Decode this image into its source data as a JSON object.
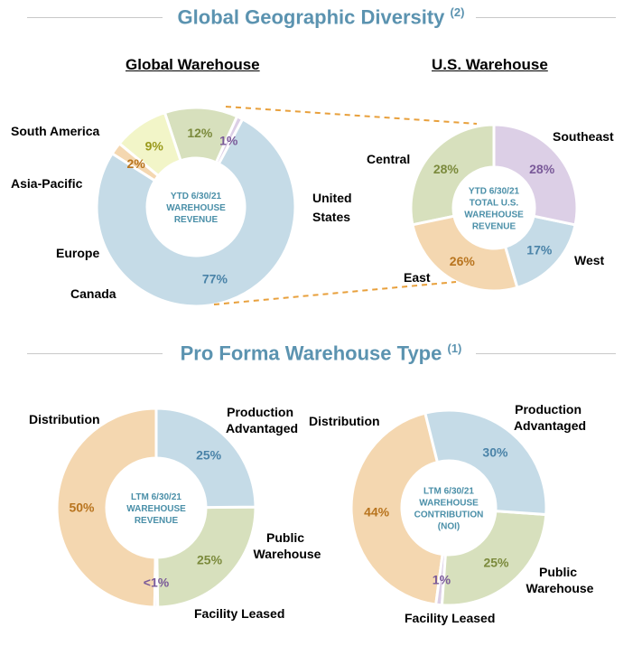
{
  "sections": {
    "geo_title": "Global Geographic Diversity",
    "geo_note": "(2)",
    "type_title": "Pro Forma Warehouse Type",
    "type_note": "(1)"
  },
  "colors": {
    "blue": "#c5dbe7",
    "green": "#d7e0bd",
    "yellow": "#f2f5c8",
    "orange": "#f4d7b0",
    "purple": "#dccfe6",
    "connector": "#e8a03c",
    "title": "#5b93b0"
  },
  "chart_data": [
    {
      "id": "global",
      "type": "pie",
      "title": "Global Warehouse",
      "center_lines": [
        "YTD 6/30/21",
        "WAREHOUSE",
        "REVENUE"
      ],
      "slices": [
        {
          "name": "United States",
          "value": 77,
          "label": "77%",
          "color": "#c5dbe7",
          "pct_color": "#4a83a8"
        },
        {
          "name": "Canada",
          "value": 2,
          "label": "2%",
          "color": "#f4d7b0",
          "pct_color": "#b8741e"
        },
        {
          "name": "Europe",
          "value": 9,
          "label": "9%",
          "color": "#f2f5c8",
          "pct_color": "#9a9a1c"
        },
        {
          "name": "Asia-Pacific",
          "value": 12,
          "label": "12%",
          "color": "#d7e0bd",
          "pct_color": "#7b8a3c"
        },
        {
          "name": "South America",
          "value": 1,
          "label": "1%",
          "color": "#dccfe6",
          "pct_color": "#7a5a99"
        }
      ]
    },
    {
      "id": "us",
      "type": "pie",
      "title": "U.S. Warehouse",
      "center_lines": [
        "YTD 6/30/21",
        "TOTAL U.S.",
        "WAREHOUSE",
        "REVENUE"
      ],
      "slices": [
        {
          "name": "Southeast",
          "value": 28,
          "label": "28%",
          "color": "#dccfe6",
          "pct_color": "#7a5a99"
        },
        {
          "name": "West",
          "value": 17,
          "label": "17%",
          "color": "#c5dbe7",
          "pct_color": "#4a83a8"
        },
        {
          "name": "East",
          "value": 26,
          "label": "26%",
          "color": "#f4d7b0",
          "pct_color": "#b8741e"
        },
        {
          "name": "Central",
          "value": 28,
          "label": "28%",
          "color": "#d7e0bd",
          "pct_color": "#7b8a3c"
        }
      ]
    },
    {
      "id": "type_revenue",
      "type": "pie",
      "title": "",
      "center_lines": [
        "LTM 6/30/21",
        "WAREHOUSE",
        "REVENUE"
      ],
      "slices": [
        {
          "name": "Production Advantaged",
          "value": 25,
          "label": "25%",
          "color": "#c5dbe7",
          "pct_color": "#4a83a8"
        },
        {
          "name": "Public Warehouse",
          "value": 25,
          "label": "25%",
          "color": "#d7e0bd",
          "pct_color": "#7b8a3c"
        },
        {
          "name": "Facility Leased",
          "value": 0.5,
          "label": "<1%",
          "color": "#dccfe6",
          "pct_color": "#7a5a99"
        },
        {
          "name": "Distribution",
          "value": 50,
          "label": "50%",
          "color": "#f4d7b0",
          "pct_color": "#b8741e"
        }
      ]
    },
    {
      "id": "type_noi",
      "type": "pie",
      "title": "",
      "center_lines": [
        "LTM 6/30/21",
        "WAREHOUSE",
        "CONTRIBUTION",
        "(NOI)"
      ],
      "slices": [
        {
          "name": "Production Advantaged",
          "value": 30,
          "label": "30%",
          "color": "#c5dbe7",
          "pct_color": "#4a83a8"
        },
        {
          "name": "Public Warehouse",
          "value": 25,
          "label": "25%",
          "color": "#d7e0bd",
          "pct_color": "#7b8a3c"
        },
        {
          "name": "Facility Leased",
          "value": 1,
          "label": "1%",
          "color": "#dccfe6",
          "pct_color": "#7a5a99"
        },
        {
          "name": "Distribution",
          "value": 44,
          "label": "44%",
          "color": "#f4d7b0",
          "pct_color": "#b8741e"
        }
      ]
    }
  ]
}
